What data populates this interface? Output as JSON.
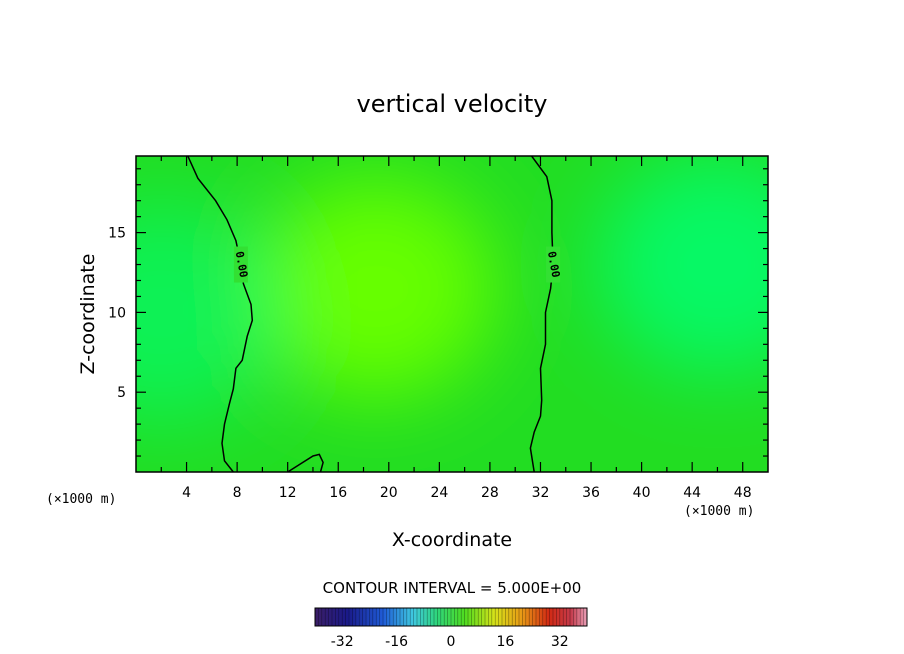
{
  "chart_data": {
    "type": "heatmap",
    "title": "vertical velocity",
    "xlabel": "X-coordinate",
    "ylabel": "Z-coordinate",
    "x_units": "(×1000 m)",
    "y_units": "(×1000 m)",
    "xlim": [
      0,
      50
    ],
    "ylim": [
      0,
      19.8
    ],
    "x_ticks": [
      4,
      8,
      12,
      16,
      20,
      24,
      28,
      32,
      36,
      40,
      44,
      48
    ],
    "y_ticks": [
      5,
      10,
      15
    ],
    "contour_interval_text": "CONTOUR INTERVAL = 5.000E+00",
    "contour_label": "0.00",
    "contour_lines": [
      {
        "level": 0,
        "points": [
          [
            4.1,
            19.8
          ],
          [
            4.9,
            18.4
          ],
          [
            6.3,
            17.0
          ],
          [
            7.2,
            15.8
          ],
          [
            7.9,
            14.5
          ],
          [
            8.3,
            13.0
          ],
          [
            8.5,
            11.8
          ],
          [
            9.1,
            10.5
          ],
          [
            9.2,
            9.5
          ],
          [
            8.8,
            8.5
          ],
          [
            8.4,
            7.0
          ],
          [
            7.9,
            6.5
          ],
          [
            7.7,
            5.2
          ],
          [
            7.4,
            4.3
          ],
          [
            7.0,
            3.0
          ],
          [
            6.8,
            1.8
          ],
          [
            7.0,
            0.7
          ],
          [
            7.7,
            0.0
          ]
        ]
      },
      {
        "level": 0,
        "points": [
          [
            12.0,
            0.0
          ],
          [
            13.0,
            0.5
          ],
          [
            14.0,
            1.0
          ],
          [
            14.5,
            1.1
          ],
          [
            14.8,
            0.6
          ],
          [
            14.6,
            0.0
          ]
        ]
      },
      {
        "level": 0,
        "points": [
          [
            31.3,
            19.8
          ],
          [
            32.5,
            18.5
          ],
          [
            32.9,
            17.0
          ],
          [
            32.9,
            15.0
          ],
          [
            33.0,
            13.0
          ],
          [
            32.8,
            11.5
          ],
          [
            32.4,
            10.0
          ],
          [
            32.4,
            8.0
          ],
          [
            32.0,
            6.5
          ],
          [
            32.1,
            4.5
          ],
          [
            32.0,
            3.5
          ],
          [
            31.5,
            2.5
          ],
          [
            31.2,
            1.5
          ],
          [
            31.5,
            0.0
          ]
        ]
      }
    ],
    "field_extrema": [
      {
        "x": 19,
        "z": 11.5,
        "value": 2.5
      },
      {
        "x": 2,
        "z": 10,
        "value": -1.5
      },
      {
        "x": 46,
        "z": 13,
        "value": -2.0
      }
    ],
    "colorbar": {
      "min": -40,
      "max": 40,
      "tick_labels": [
        "-32",
        "-16",
        "0",
        "16",
        "32"
      ],
      "tick_values": [
        -32,
        -16,
        0,
        16,
        32
      ],
      "colormap": "rainbow (purple - blue - cyan - green - yellow - red - pink)"
    },
    "grid": false
  }
}
